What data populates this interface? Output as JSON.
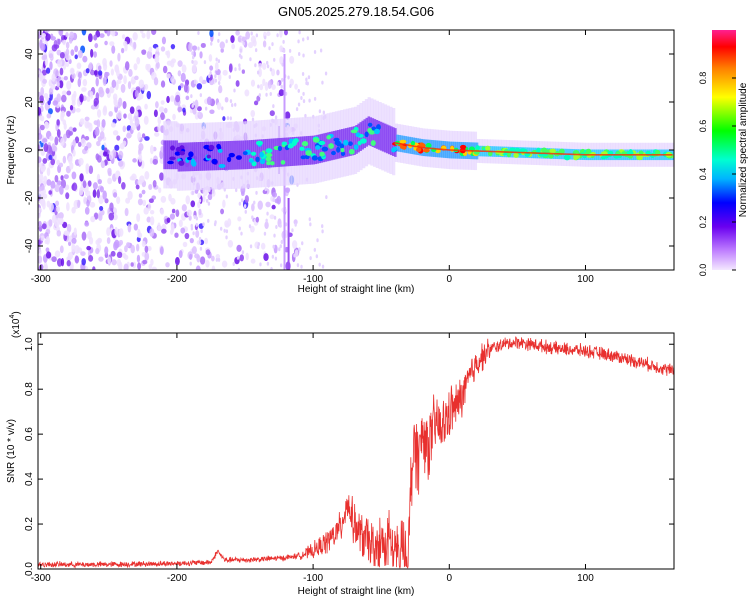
{
  "title": "GN05.2025.279.18.54.G06",
  "colors": {
    "snr_line": "#e8302e",
    "spectrogram_low": "#c080ff",
    "spectrogram_mid": "#6020e0",
    "spectrogram_high": "#ff0000"
  },
  "chart_data": [
    {
      "type": "heatmap",
      "name": "spectrogram",
      "xlabel": "Height of straight line (km)",
      "ylabel": "Frequency (Hz)",
      "xlim": [
        -302,
        165
      ],
      "ylim": [
        -50,
        50
      ],
      "x_ticks": [
        -300,
        -200,
        -100,
        0,
        100
      ],
      "y_ticks": [
        -40,
        -20,
        0,
        20,
        40
      ],
      "x_tick_labels": [
        "-300",
        "-200",
        "-100",
        "0",
        "100"
      ],
      "y_tick_labels": [
        "-40",
        "-20",
        "0",
        "20",
        "40"
      ],
      "colorbar": {
        "label": "Normalized spectral amplitude",
        "range": [
          0,
          1
        ],
        "ticks": [
          0.0,
          0.2,
          0.4,
          0.6,
          0.8
        ],
        "tick_labels": [
          "0.0",
          "0.2",
          "0.4",
          "0.6",
          "0.8"
        ]
      },
      "ridge": [
        {
          "h": -200,
          "f": -3
        },
        {
          "h": -150,
          "f": -2
        },
        {
          "h": -100,
          "f": 0
        },
        {
          "h": -70,
          "f": 4
        },
        {
          "h": -60,
          "f": 8
        },
        {
          "h": -40,
          "f": 3
        },
        {
          "h": -20,
          "f": 1
        },
        {
          "h": 0,
          "f": 0
        },
        {
          "h": 50,
          "f": -1
        },
        {
          "h": 100,
          "f": -2
        },
        {
          "h": 165,
          "f": -2
        }
      ]
    },
    {
      "type": "line",
      "name": "snr",
      "xlabel": "Height of straight line (km)",
      "ylabel": "SNR (10 * v/v)",
      "scale_label": "(x10",
      "scale_exponent": "4",
      "scale_close": ")",
      "xlim": [
        -302,
        165
      ],
      "ylim": [
        0,
        1.05
      ],
      "x_ticks": [
        -300,
        -200,
        -100,
        0,
        100
      ],
      "y_ticks": [
        0.0,
        0.2,
        0.4,
        0.6,
        0.8,
        1.0
      ],
      "x_tick_labels": [
        "-300",
        "-200",
        "-100",
        "0",
        "100"
      ],
      "y_tick_labels": [
        "0.0",
        "0.2",
        "0.4",
        "0.6",
        "0.8",
        "1.0"
      ],
      "series": [
        {
          "name": "SNR",
          "x": [
            -302,
            -250,
            -200,
            -175,
            -170,
            -165,
            -150,
            -120,
            -110,
            -100,
            -90,
            -80,
            -75,
            -70,
            -65,
            -55,
            -45,
            -35,
            -30,
            -28,
            -26,
            -22,
            -20,
            -15,
            -10,
            -5,
            0,
            5,
            10,
            20,
            30,
            40,
            50,
            60,
            80,
            100,
            120,
            140,
            165
          ],
          "y": [
            0.02,
            0.02,
            0.025,
            0.03,
            0.08,
            0.04,
            0.04,
            0.05,
            0.06,
            0.08,
            0.12,
            0.18,
            0.3,
            0.2,
            0.15,
            0.1,
            0.12,
            0.08,
            0.05,
            0.4,
            0.55,
            0.5,
            0.6,
            0.55,
            0.65,
            0.62,
            0.7,
            0.72,
            0.78,
            0.92,
            0.98,
            1.0,
            1.01,
            1.0,
            0.98,
            0.97,
            0.95,
            0.92,
            0.88
          ]
        }
      ]
    }
  ]
}
